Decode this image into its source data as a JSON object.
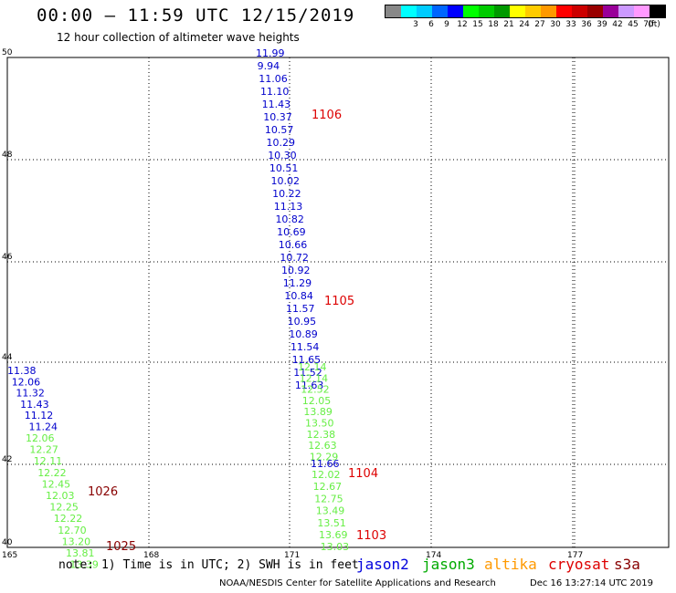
{
  "header": {
    "title": "00:00 – 11:59 UTC 12/15/2019",
    "subtitle": "12 hour collection of altimeter wave heights"
  },
  "legend": {
    "unit": "(ft)",
    "items": [
      {
        "label": "",
        "color": "#888888"
      },
      {
        "label": "3",
        "color": "#00ffff"
      },
      {
        "label": "6",
        "color": "#00ccff"
      },
      {
        "label": "9",
        "color": "#0066ff"
      },
      {
        "label": "12",
        "color": "#0000ff"
      },
      {
        "label": "15",
        "color": "#00ff00"
      },
      {
        "label": "18",
        "color": "#00cc00"
      },
      {
        "label": "21",
        "color": "#009900"
      },
      {
        "label": "24",
        "color": "#ffff00"
      },
      {
        "label": "27",
        "color": "#ffcc00"
      },
      {
        "label": "30",
        "color": "#ff9900"
      },
      {
        "label": "33",
        "color": "#ff0000"
      },
      {
        "label": "36",
        "color": "#cc0000"
      },
      {
        "label": "39",
        "color": "#990000"
      },
      {
        "label": "42",
        "color": "#990099"
      },
      {
        "label": "45",
        "color": "#cc99ff"
      },
      {
        "label": "70",
        "color": "#ff99ff"
      },
      {
        "label": "",
        "color": "#000000"
      }
    ]
  },
  "map": {
    "lon_ticks": [
      "165",
      "168",
      "171",
      "174",
      "177"
    ],
    "lat_ticks": [
      "50",
      "48",
      "46",
      "44",
      "42",
      "40"
    ],
    "track_colors": {
      "jason2": "#0000cc",
      "jason3": "#66ee44",
      "time": "#dd0000",
      "cryosat": "#880000"
    },
    "tracks": [
      {
        "name": "track_main",
        "satellite": "jason2",
        "lon": 170.5,
        "lat_start": 49.92,
        "lat_end": 40.1,
        "values": [
          "11.99",
          "9.94",
          "11.06",
          "11.10",
          "11.43",
          "10.37",
          "10.57",
          "10.29",
          "10.30",
          "10.51",
          "10.02",
          "10.22",
          "11.13",
          "10.82",
          "10.69",
          "10.66",
          "10.72",
          "10.92",
          "11.29",
          "10.84",
          "11.57",
          "10.95",
          "10.89",
          "11.54",
          "11.65",
          "11.52",
          "11.63"
        ]
      },
      {
        "name": "track_main_j3a",
        "satellite": "jason3",
        "values": [
          "12.14",
          "12.14",
          "12.52",
          "12.05",
          "13.89",
          "13.50",
          "12.38",
          "12.63",
          "12.29"
        ]
      },
      {
        "name": "track_main_j2b",
        "satellite": "jason2",
        "values": [
          "11.66"
        ]
      },
      {
        "name": "track_main_j3b",
        "satellite": "jason3",
        "values": [
          "12.02",
          "12.67",
          "12.75",
          "13.49",
          "13.51",
          "13.69",
          "13.03"
        ]
      },
      {
        "name": "track_west_j2",
        "satellite": "jason2",
        "values": [
          "11.38",
          "12.06",
          "11.32",
          "11.43",
          "11.12",
          "11.24"
        ]
      },
      {
        "name": "track_west_j3",
        "satellite": "jason3",
        "values": [
          "12.06",
          "12.27",
          "12.11",
          "12.22",
          "12.45",
          "12.03",
          "12.25",
          "12.22",
          "12.70",
          "13.20",
          "13.81",
          "13.39"
        ]
      }
    ],
    "time_labels": [
      {
        "text": "1106",
        "kind": "time"
      },
      {
        "text": "1105",
        "kind": "time"
      },
      {
        "text": "1104",
        "kind": "time"
      },
      {
        "text": "1103",
        "kind": "time"
      },
      {
        "text": "1026",
        "kind": "cryosat"
      },
      {
        "text": "1025",
        "kind": "cryosat"
      }
    ]
  },
  "footer": {
    "note": "note: 1) Time is in UTC; 2) SWH is in feet",
    "satellites": [
      {
        "name": "jason2",
        "color": "#0000dd"
      },
      {
        "name": "jason3",
        "color": "#00aa00"
      },
      {
        "name": "altika",
        "color": "#ff9900"
      },
      {
        "name": "cryosat",
        "color": "#dd0000"
      },
      {
        "name": "s3a",
        "color": "#880000"
      }
    ],
    "credit": "NOAA/NESDIS Center for Satellite Applications and Research",
    "generated": "Dec 16 13:27:14 UTC 2019"
  }
}
